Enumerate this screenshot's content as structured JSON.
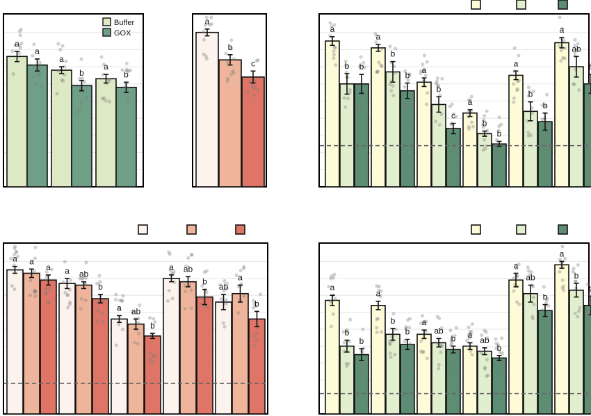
{
  "colors": {
    "buffer_green": "#dde9c4",
    "gox_green": "#6f9f86",
    "cream": "#fdfbd8",
    "pale_green": "#e2efcf",
    "dark_green": "#5d8e74",
    "pale_pink": "#fcf3ef",
    "salmon": "#efb59c",
    "red": "#df7566",
    "dashed_line": "#666666"
  },
  "chart_data": [
    {
      "panel": "top-left",
      "type": "bar",
      "legend": {
        "placement": "top-right",
        "entries": [
          "Buffer",
          "GOX"
        ],
        "colors": [
          "#dde9c4",
          "#6f9f86"
        ]
      },
      "ylim": [
        0,
        10
      ],
      "grid": true,
      "bars": [
        {
          "value": 7.6,
          "err": 0.3,
          "color": "#dde9c4",
          "sig": "a"
        },
        {
          "value": 7.1,
          "err": 0.35,
          "color": "#6f9f86",
          "sig": "a"
        },
        {
          "value": 6.8,
          "err": 0.2,
          "color": "#dde9c4",
          "sig": "a"
        },
        {
          "value": 5.9,
          "err": 0.3,
          "color": "#6f9f86",
          "sig": "b"
        },
        {
          "value": 6.3,
          "err": 0.25,
          "color": "#dde9c4",
          "sig": "a"
        },
        {
          "value": 5.8,
          "err": 0.3,
          "color": "#6f9f86",
          "sig": "b"
        }
      ]
    },
    {
      "panel": "top-middle",
      "type": "bar",
      "ylim": [
        0,
        10
      ],
      "grid": false,
      "bars": [
        {
          "value": 9.0,
          "err": 0.2,
          "color": "#fcf3ef",
          "sig": "a"
        },
        {
          "value": 7.4,
          "err": 0.3,
          "color": "#efb59c",
          "sig": "b"
        },
        {
          "value": 6.4,
          "err": 0.35,
          "color": "#df7566",
          "sig": "c"
        }
      ]
    },
    {
      "panel": "top-right",
      "type": "bar",
      "legend": {
        "placement": "top-right",
        "entries": [
          "",
          "",
          ""
        ],
        "colors": [
          "#fdfbd8",
          "#e2efcf",
          "#5d8e74"
        ]
      },
      "ylim": [
        0,
        10
      ],
      "grid": true,
      "reference_line": 2.4,
      "bars": [
        {
          "value": 8.5,
          "err": 0.25,
          "color": "#fdfbd8",
          "sig": "a"
        },
        {
          "value": 6.0,
          "err": 0.6,
          "color": "#e2efcf",
          "sig": "b"
        },
        {
          "value": 6.0,
          "err": 0.55,
          "color": "#5d8e74",
          "sig": "b"
        },
        {
          "value": 8.1,
          "err": 0.2,
          "color": "#fdfbd8",
          "sig": "a"
        },
        {
          "value": 6.7,
          "err": 0.6,
          "color": "#e2efcf",
          "sig": "b"
        },
        {
          "value": 5.6,
          "err": 0.45,
          "color": "#5d8e74",
          "sig": "b"
        },
        {
          "value": 6.1,
          "err": 0.25,
          "color": "#fdfbd8",
          "sig": "a"
        },
        {
          "value": 4.8,
          "err": 0.45,
          "color": "#e2efcf",
          "sig": "b"
        },
        {
          "value": 3.4,
          "err": 0.3,
          "color": "#5d8e74",
          "sig": "c"
        },
        {
          "value": 4.3,
          "err": 0.2,
          "color": "#fdfbd8",
          "sig": "a"
        },
        {
          "value": 3.1,
          "err": 0.15,
          "color": "#e2efcf",
          "sig": "b"
        },
        {
          "value": 2.5,
          "err": 0.15,
          "color": "#5d8e74",
          "sig": "b"
        },
        {
          "value": 6.5,
          "err": 0.25,
          "color": "#fdfbd8",
          "sig": "a"
        },
        {
          "value": 4.4,
          "err": 0.55,
          "color": "#e2efcf",
          "sig": "b"
        },
        {
          "value": 3.8,
          "err": 0.5,
          "color": "#5d8e74",
          "sig": "b"
        },
        {
          "value": 8.4,
          "err": 0.3,
          "color": "#fdfbd8",
          "sig": "a"
        },
        {
          "value": 7.0,
          "err": 0.6,
          "color": "#e2efcf",
          "sig": "ab"
        },
        {
          "value": 6.0,
          "err": 0.55,
          "color": "#5d8e74",
          "sig": "b"
        }
      ]
    },
    {
      "panel": "bottom-left",
      "type": "bar",
      "legend": {
        "placement": "top-right",
        "entries": [
          "",
          "",
          ""
        ],
        "colors": [
          "#fcf3ef",
          "#efb59c",
          "#df7566"
        ]
      },
      "ylim": [
        0,
        10
      ],
      "grid": true,
      "reference_line": 1.8,
      "bars": [
        {
          "value": 8.5,
          "err": 0.2,
          "color": "#fcf3ef",
          "sig": "a"
        },
        {
          "value": 8.3,
          "err": 0.25,
          "color": "#efb59c",
          "sig": "a"
        },
        {
          "value": 7.9,
          "err": 0.3,
          "color": "#df7566",
          "sig": "a"
        },
        {
          "value": 7.7,
          "err": 0.3,
          "color": "#fcf3ef",
          "sig": "a"
        },
        {
          "value": 7.6,
          "err": 0.2,
          "color": "#efb59c",
          "sig": "ab"
        },
        {
          "value": 6.8,
          "err": 0.25,
          "color": "#df7566",
          "sig": "b"
        },
        {
          "value": 5.6,
          "err": 0.2,
          "color": "#fcf3ef",
          "sig": "a"
        },
        {
          "value": 5.3,
          "err": 0.3,
          "color": "#efb59c",
          "sig": "ab"
        },
        {
          "value": 4.6,
          "err": 0.15,
          "color": "#df7566",
          "sig": "b"
        },
        {
          "value": 8.0,
          "err": 0.2,
          "color": "#fcf3ef",
          "sig": "a"
        },
        {
          "value": 7.8,
          "err": 0.3,
          "color": "#efb59c",
          "sig": "ab"
        },
        {
          "value": 6.9,
          "err": 0.45,
          "color": "#df7566",
          "sig": "b"
        },
        {
          "value": 6.6,
          "err": 0.45,
          "color": "#fcf3ef",
          "sig": "ab"
        },
        {
          "value": 7.1,
          "err": 0.5,
          "color": "#efb59c",
          "sig": "a"
        },
        {
          "value": 5.6,
          "err": 0.45,
          "color": "#df7566",
          "sig": "b"
        }
      ]
    },
    {
      "panel": "bottom-right",
      "type": "bar",
      "legend": {
        "placement": "top-right",
        "entries": [
          "",
          "",
          ""
        ],
        "colors": [
          "#fdfbd8",
          "#e2efcf",
          "#5d8e74"
        ]
      },
      "ylim": [
        0,
        10
      ],
      "grid": true,
      "reference_line": 1.2,
      "bars": [
        {
          "value": 6.7,
          "err": 0.3,
          "color": "#fdfbd8",
          "sig": "a"
        },
        {
          "value": 4.0,
          "err": 0.35,
          "color": "#e2efcf",
          "sig": "b"
        },
        {
          "value": 3.5,
          "err": 0.35,
          "color": "#5d8e74",
          "sig": "b"
        },
        {
          "value": 6.4,
          "err": 0.25,
          "color": "#fdfbd8",
          "sig": "a"
        },
        {
          "value": 4.7,
          "err": 0.35,
          "color": "#e2efcf",
          "sig": "b"
        },
        {
          "value": 4.1,
          "err": 0.3,
          "color": "#5d8e74",
          "sig": "b"
        },
        {
          "value": 4.7,
          "err": 0.25,
          "color": "#fdfbd8",
          "sig": "a"
        },
        {
          "value": 4.2,
          "err": 0.25,
          "color": "#e2efcf",
          "sig": "ab"
        },
        {
          "value": 3.8,
          "err": 0.2,
          "color": "#5d8e74",
          "sig": "b"
        },
        {
          "value": 4.0,
          "err": 0.2,
          "color": "#fdfbd8",
          "sig": "a"
        },
        {
          "value": 3.7,
          "err": 0.2,
          "color": "#e2efcf",
          "sig": "ab"
        },
        {
          "value": 3.3,
          "err": 0.15,
          "color": "#5d8e74",
          "sig": "b"
        },
        {
          "value": 7.9,
          "err": 0.4,
          "color": "#fdfbd8",
          "sig": "a"
        },
        {
          "value": 7.1,
          "err": 0.5,
          "color": "#e2efcf",
          "sig": "ab"
        },
        {
          "value": 6.1,
          "err": 0.35,
          "color": "#5d8e74",
          "sig": "b"
        },
        {
          "value": 8.8,
          "err": 0.2,
          "color": "#fdfbd8",
          "sig": "a"
        },
        {
          "value": 7.3,
          "err": 0.4,
          "color": "#e2efcf",
          "sig": "b"
        },
        {
          "value": 6.4,
          "err": 0.55,
          "color": "#5d8e74",
          "sig": "b"
        }
      ]
    }
  ]
}
